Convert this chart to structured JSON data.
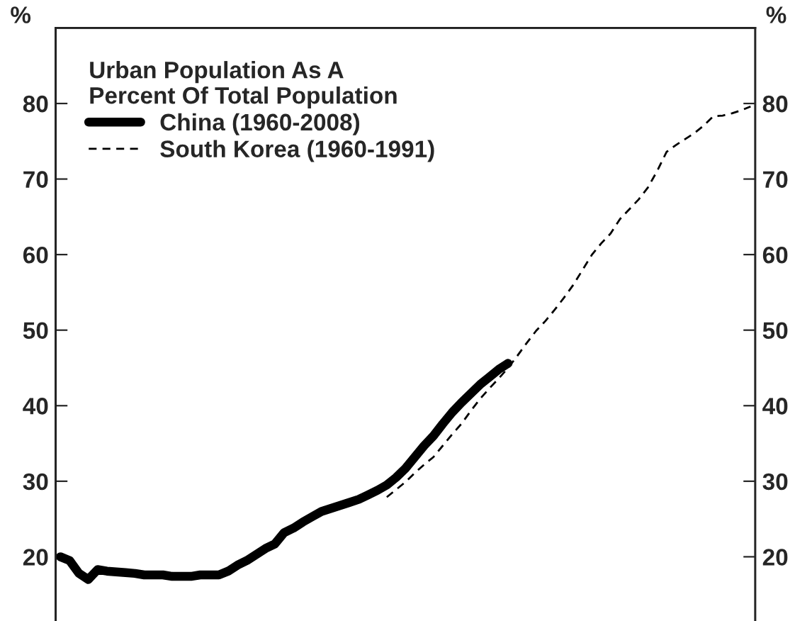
{
  "chart_data": {
    "type": "line",
    "ylabel": "%",
    "y2label": "%",
    "legend_title": "Urban Population As A\nPercent Of Total Population",
    "categories": [
      null,
      null,
      null,
      null,
      null,
      null,
      null,
      null,
      null,
      null,
      null,
      null,
      null,
      null,
      null,
      null,
      null,
      null,
      null,
      null,
      null,
      null,
      null,
      null,
      null,
      null,
      null,
      null,
      null,
      null,
      null,
      null,
      null,
      null,
      null,
      null,
      null,
      null,
      null,
      null,
      null,
      null,
      null,
      null,
      null,
      null,
      null,
      null,
      null,
      null,
      null,
      null,
      null,
      null,
      null,
      null,
      null,
      null,
      null,
      null,
      null,
      null,
      null,
      null,
      null,
      null,
      null,
      null,
      null,
      null,
      null,
      null,
      null,
      null,
      null
    ],
    "series": [
      {
        "name": "China (1960-2008)",
        "color": "#000000",
        "line_style": "solid",
        "values": [
          20.0,
          19.5,
          17.8,
          17.0,
          18.3,
          18.1,
          18.0,
          17.9,
          17.8,
          17.6,
          17.6,
          17.6,
          17.4,
          17.4,
          17.4,
          17.6,
          17.6,
          17.6,
          18.1,
          18.9,
          19.5,
          20.3,
          21.1,
          21.7,
          23.2,
          23.8,
          24.6,
          25.3,
          26.0,
          26.4,
          26.8,
          27.2,
          27.6,
          28.2,
          28.8,
          29.5,
          30.5,
          31.7,
          33.2,
          34.7,
          36.0,
          37.6,
          39.1,
          40.4,
          41.6,
          42.8,
          43.8,
          44.8,
          45.6,
          null,
          null,
          null,
          null,
          null,
          null,
          null,
          null,
          null,
          null,
          null,
          null,
          null,
          null,
          null,
          null,
          null,
          null,
          null,
          null,
          null,
          null,
          null,
          null,
          null,
          null
        ]
      },
      {
        "name": "South Korea (1960-1991)",
        "color": "#000000",
        "line_style": "dashed",
        "values": [
          null,
          null,
          null,
          null,
          null,
          null,
          null,
          null,
          null,
          null,
          null,
          null,
          null,
          null,
          null,
          null,
          null,
          null,
          null,
          null,
          null,
          null,
          null,
          null,
          null,
          null,
          null,
          null,
          null,
          null,
          null,
          null,
          null,
          null,
          null,
          27.9,
          28.9,
          29.9,
          31.1,
          32.2,
          33.2,
          34.7,
          36.2,
          37.6,
          39.3,
          40.9,
          42.3,
          43.6,
          45.0,
          46.6,
          48.3,
          49.9,
          51.2,
          52.7,
          54.3,
          56.0,
          58.0,
          60.0,
          61.5,
          62.8,
          64.7,
          66.0,
          67.3,
          68.9,
          71.1,
          73.6,
          74.5,
          75.3,
          76.1,
          77.1,
          78.3,
          78.4,
          78.7,
          79.1,
          79.6
        ]
      }
    ],
    "ylim": [
      11.5,
      90
    ],
    "yticks": [
      20,
      30,
      40,
      50,
      60,
      70,
      80
    ],
    "y2lim": [
      11.5,
      90
    ],
    "y2ticks": [
      20,
      30,
      40,
      50,
      60,
      70,
      80
    ],
    "tick_labels": "y",
    "grid": false,
    "legend": "top left"
  }
}
